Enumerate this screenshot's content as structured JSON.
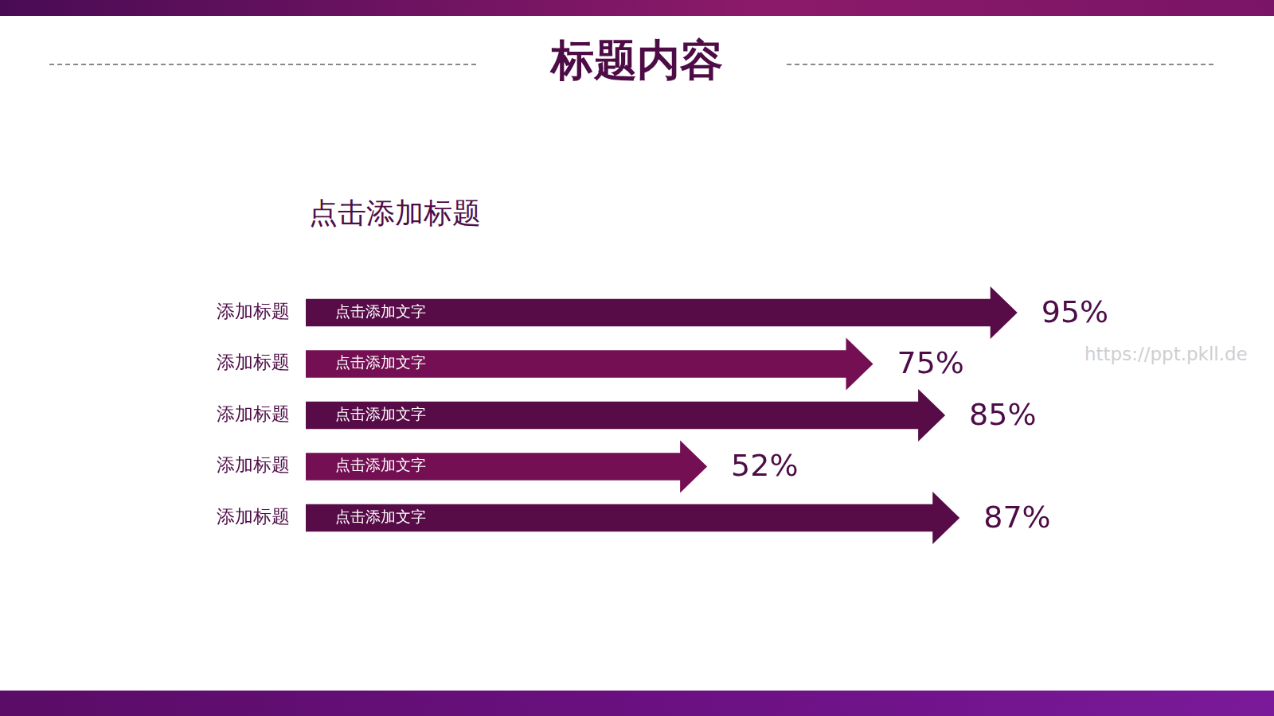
{
  "chart_data": {
    "type": "bar",
    "title": "标题内容",
    "subtitle": "点击添加标题",
    "orientation": "horizontal",
    "categories": [
      "添加标题",
      "添加标题",
      "添加标题",
      "添加标题",
      "添加标题"
    ],
    "values": [
      95,
      75,
      85,
      52,
      87
    ],
    "value_labels": [
      "95%",
      "75%",
      "85%",
      "52%",
      "87%"
    ],
    "bar_texts": [
      "点击添加文字",
      "点击添加文字",
      "点击添加文字",
      "点击添加文字",
      "点击添加文字"
    ],
    "colors": [
      "#570b47",
      "#730f52",
      "#570b47",
      "#730f52",
      "#570b47"
    ],
    "xlim": [
      0,
      100
    ],
    "data_labels": true,
    "tick_labels": "y",
    "grid": false,
    "watermark": "https://ppt.pkll.de"
  }
}
